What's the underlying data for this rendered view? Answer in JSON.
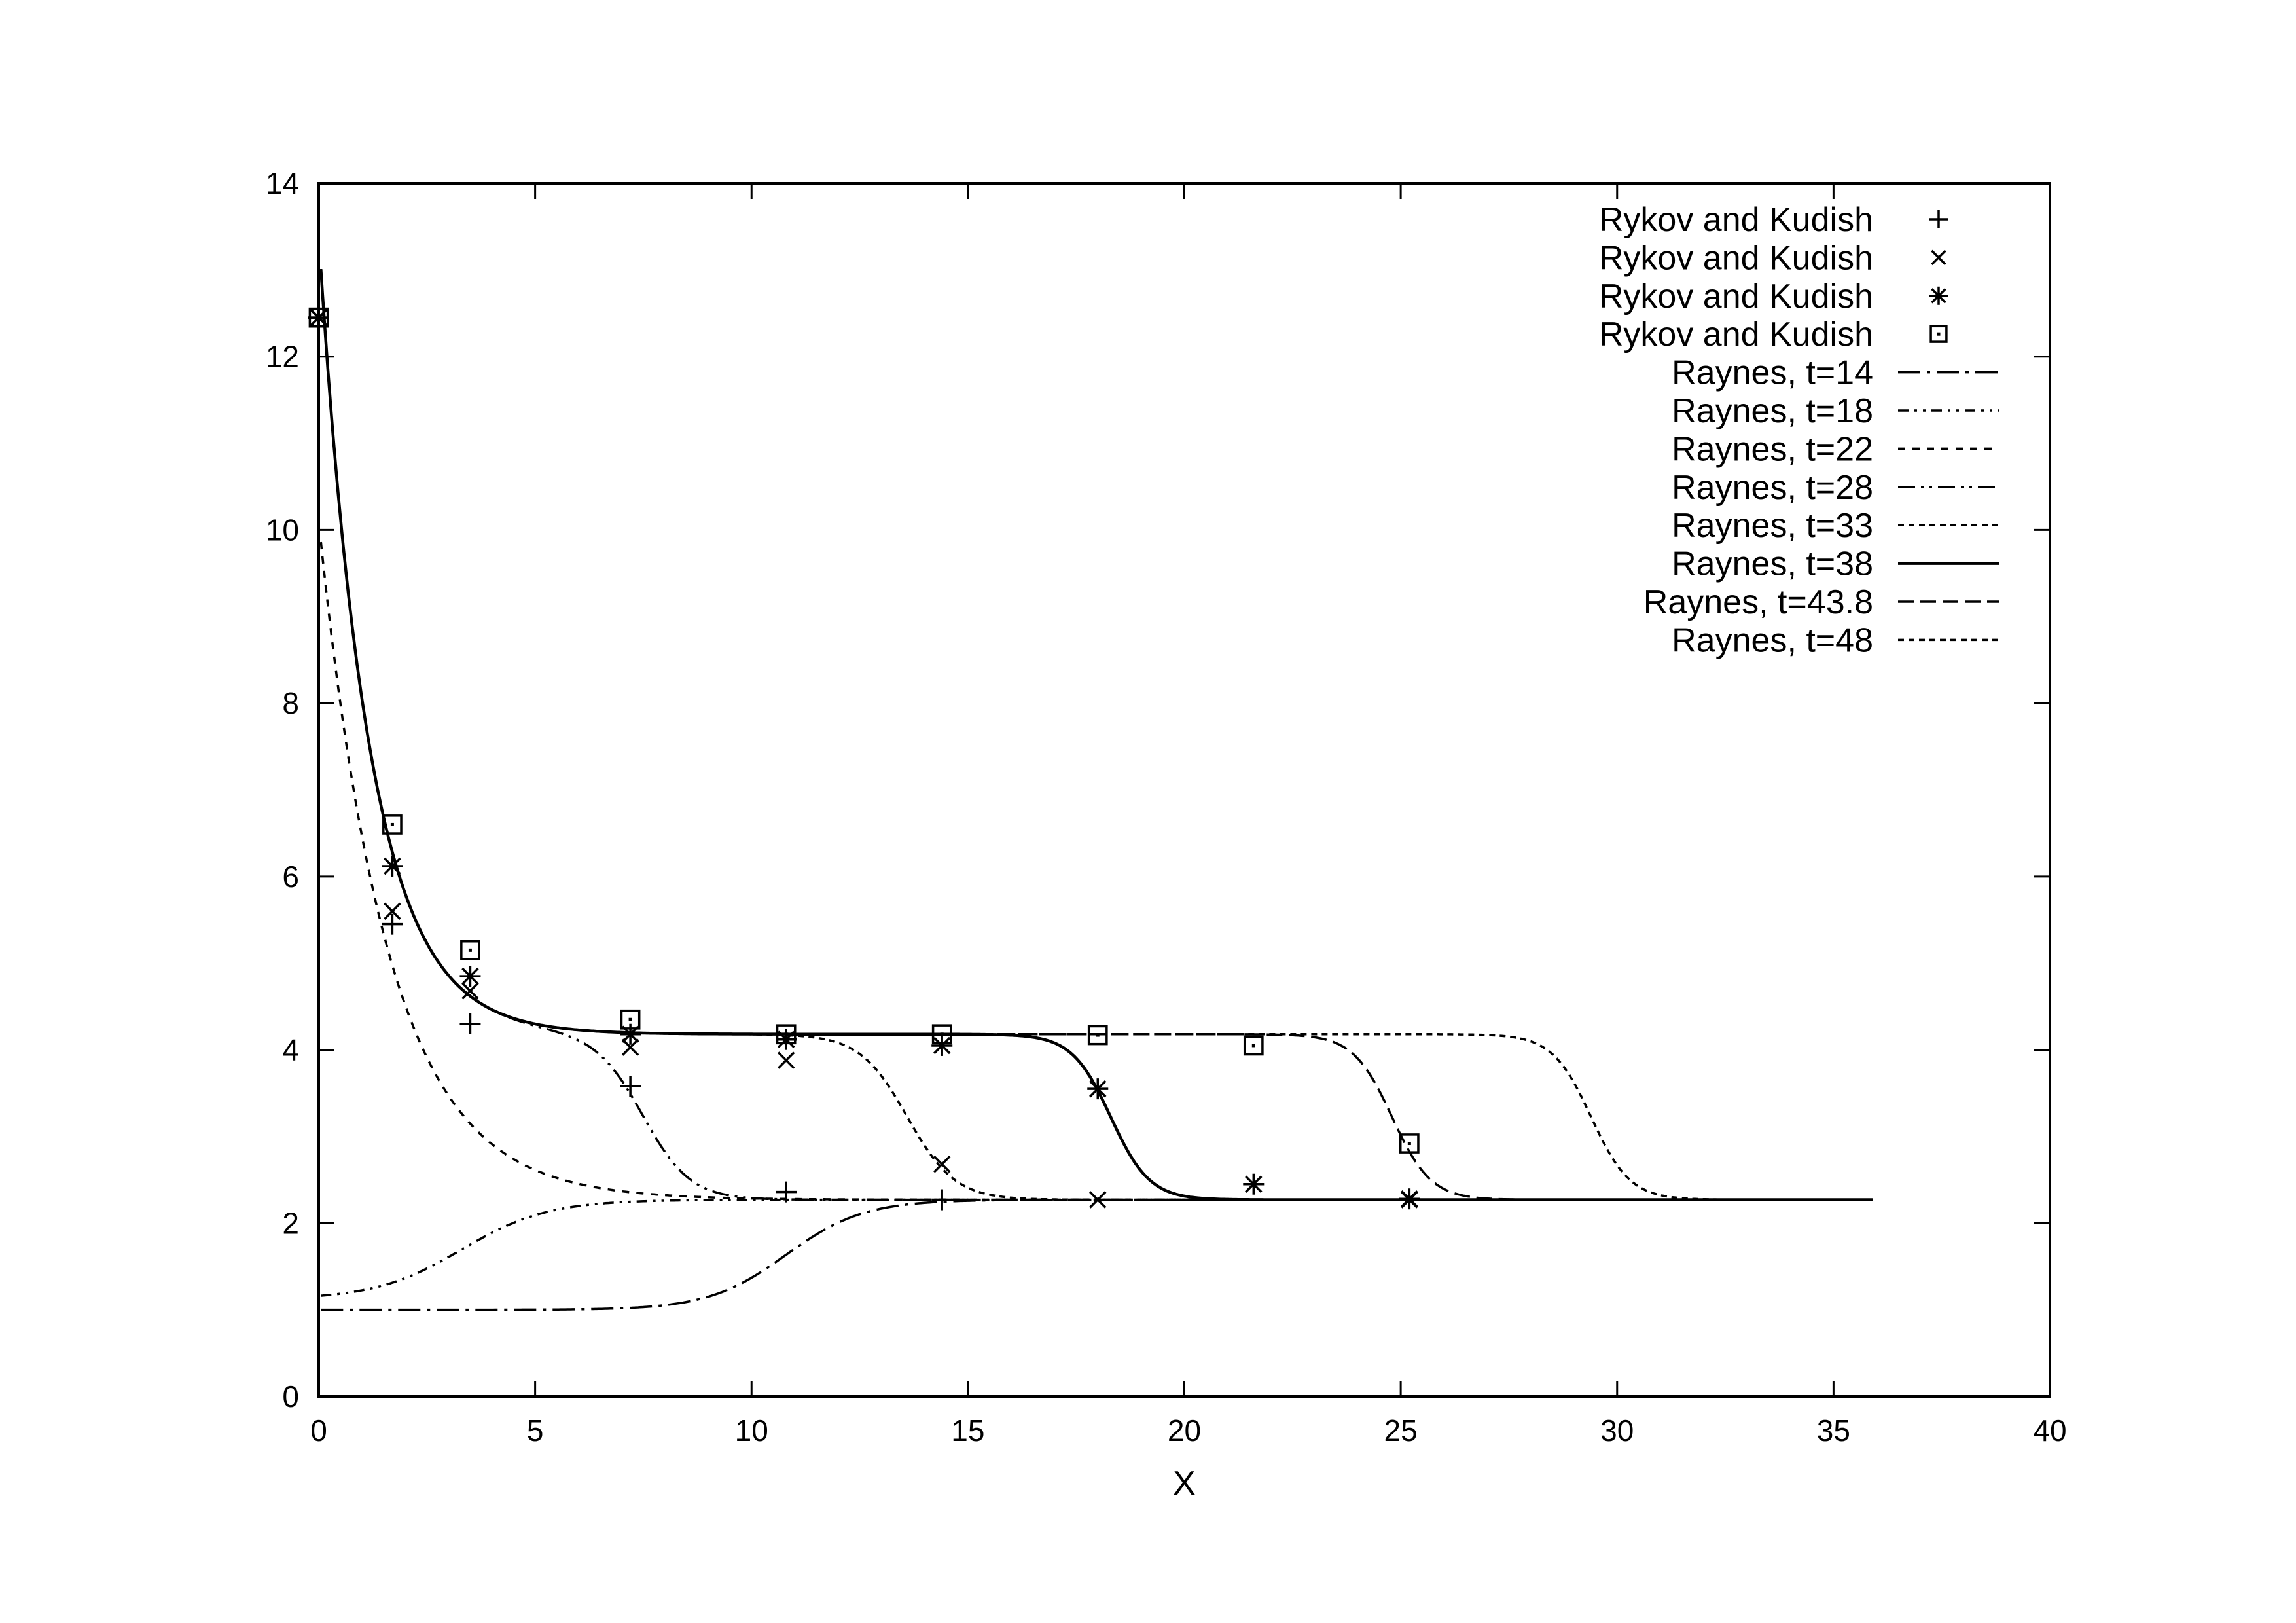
{
  "chart_data": {
    "type": "line",
    "title": "",
    "xlabel": "X",
    "ylabel": "",
    "xlim": [
      0,
      40
    ],
    "ylim": [
      0,
      14
    ],
    "xticks": [
      0,
      5,
      10,
      15,
      20,
      25,
      30,
      35,
      40
    ],
    "yticks": [
      0,
      2,
      4,
      6,
      8,
      10,
      12,
      14
    ],
    "grid": false,
    "legend_position": "top-right",
    "point_series": [
      {
        "name": "Rykov and Kudish",
        "marker": "plus",
        "points": [
          [
            0,
            12.45
          ],
          [
            1.7,
            5.45
          ],
          [
            3.5,
            4.3
          ],
          [
            7.2,
            3.58
          ],
          [
            10.8,
            2.36
          ],
          [
            14.4,
            2.27
          ]
        ]
      },
      {
        "name": "Rykov and Kudish",
        "marker": "cross",
        "points": [
          [
            0,
            12.45
          ],
          [
            1.7,
            5.6
          ],
          [
            3.5,
            4.68
          ],
          [
            7.2,
            4.03
          ],
          [
            10.8,
            3.88
          ],
          [
            14.4,
            2.68
          ],
          [
            18,
            2.27
          ],
          [
            25.2,
            2.27
          ]
        ]
      },
      {
        "name": "Rykov and Kudish",
        "marker": "star",
        "points": [
          [
            0,
            12.45
          ],
          [
            1.7,
            6.12
          ],
          [
            3.5,
            4.85
          ],
          [
            7.2,
            4.18
          ],
          [
            10.8,
            4.12
          ],
          [
            14.4,
            4.05
          ],
          [
            18,
            3.55
          ],
          [
            21.6,
            2.45
          ],
          [
            25.2,
            2.28
          ]
        ]
      },
      {
        "name": "Rykov and Kudish",
        "marker": "square",
        "points": [
          [
            0,
            12.45
          ],
          [
            1.7,
            6.6
          ],
          [
            3.5,
            5.15
          ],
          [
            7.2,
            4.35
          ],
          [
            10.8,
            4.18
          ],
          [
            14.4,
            4.18
          ],
          [
            18,
            4.17
          ],
          [
            21.6,
            4.05
          ],
          [
            25.2,
            2.92
          ]
        ]
      }
    ],
    "line_series": [
      {
        "name": "Raynes,  t=14",
        "t": 14,
        "dash": "long-dash-dot",
        "shape": "low",
        "lo": 1.0,
        "front": 10.8,
        "w": 0.9
      },
      {
        "name": "Raynes,  t=18",
        "t": 18,
        "dash": "dash-dot-dot",
        "shape": "low",
        "lo": 1.12,
        "front": 3.3,
        "w": 1.0
      },
      {
        "name": "Raynes,  t=22",
        "t": 22,
        "dash": "short-dash",
        "shape": "drop",
        "a": 10.1,
        "k": 1.6
      },
      {
        "name": "Raynes,  t=28",
        "t": 28,
        "dash": "dash-dot-dot-long",
        "shape": "plateau",
        "front": 7.5,
        "w": 0.55
      },
      {
        "name": "Raynes,  t=33",
        "t": 33,
        "dash": "fine-dash",
        "shape": "plateau",
        "front": 13.6,
        "w": 0.55
      },
      {
        "name": "Raynes,  t=38",
        "t": 38,
        "dash": "solid",
        "shape": "plateau",
        "front": 18.3,
        "w": 0.45
      },
      {
        "name": "Raynes,  t=43.8",
        "t": 43.8,
        "dash": "dash",
        "shape": "plateau",
        "front": 24.8,
        "w": 0.45
      },
      {
        "name": "Raynes,  t=48",
        "t": 48,
        "dash": "fine-dash",
        "shape": "plateau",
        "front": 29.4,
        "w": 0.45
      }
    ],
    "state_values": {
      "left": 13.4,
      "plateau": 4.18,
      "right": 2.27
    },
    "x_max_line": 35.9
  }
}
